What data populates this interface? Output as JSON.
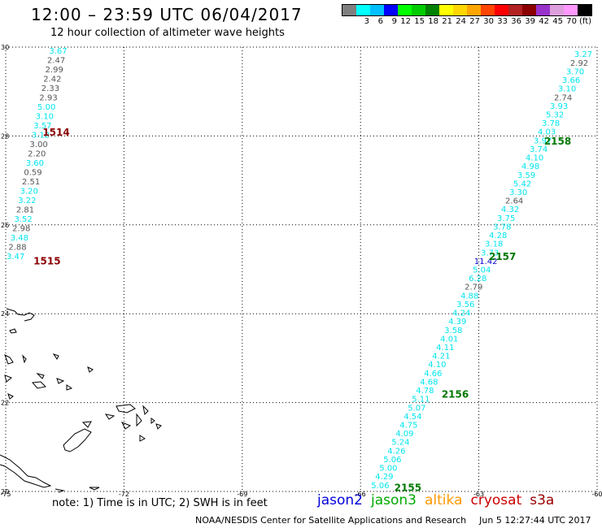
{
  "header": {
    "title": "12:00 – 23:59 UTC 06/04/2017",
    "subtitle": "12 hour collection of altimeter wave heights"
  },
  "legend": {
    "colors": [
      "#7f7f7f",
      "#00ffff",
      "#00bfff",
      "#0000ff",
      "#00ff00",
      "#00cc00",
      "#008000",
      "#ffff00",
      "#ffd700",
      "#ffa500",
      "#ff4500",
      "#ff0000",
      "#b22222",
      "#8b0000",
      "#9932cc",
      "#dda0dd",
      "#ff99ff",
      "#000000"
    ],
    "labels": [
      "3",
      "6",
      "9",
      "12",
      "15",
      "18",
      "21",
      "24",
      "27",
      "30",
      "33",
      "36",
      "39",
      "42",
      "45",
      "70"
    ],
    "unit": "(ft)"
  },
  "colors": {
    "grey": "#555555",
    "cyan": "#00e5ee",
    "blue": "#0000cc",
    "pass_label_red": "#8b0000",
    "pass_label_green": "#007700"
  },
  "chart_data": {
    "type": "scatter",
    "title": "12:00 – 23:59 UTC 06/04/2017",
    "subtitle": "12 hour collection of altimeter wave heights",
    "xlim": [
      -75,
      -60
    ],
    "ylim": [
      20,
      30
    ],
    "x_ticks": [
      -75,
      -72,
      -69,
      -66,
      -63,
      -60
    ],
    "y_ticks": [
      20,
      22,
      24,
      26,
      28,
      30
    ],
    "x_tick_labels": [
      "-75",
      "-72",
      "-69",
      "-66",
      "-63",
      "-60"
    ],
    "y_tick_labels": [
      "20",
      "22",
      "24",
      "26",
      "28",
      "30"
    ],
    "grid": true,
    "passes": [
      {
        "labels": [
          {
            "text": "1514",
            "lon": -73.72,
            "lat": 28.1,
            "color": "pass_label_red"
          },
          {
            "text": "1515",
            "lon": -73.95,
            "lat": 25.2,
            "color": "pass_label_red"
          }
        ],
        "track": {
          "lat_start": 29.93,
          "lon_start": -73.67,
          "lat_end": 25.3,
          "lon_end": -74.75
        },
        "points": [
          {
            "v": "3.67",
            "c": "cyan"
          },
          {
            "v": "2.47",
            "c": "grey"
          },
          {
            "v": "2.99",
            "c": "grey"
          },
          {
            "v": "2.42",
            "c": "grey"
          },
          {
            "v": "2.33",
            "c": "grey"
          },
          {
            "v": "2.93",
            "c": "grey"
          },
          {
            "v": "5.00",
            "c": "cyan"
          },
          {
            "v": "3.10",
            "c": "cyan"
          },
          {
            "v": "3.57",
            "c": "cyan"
          },
          {
            "v": "3.12",
            "c": "cyan"
          },
          {
            "v": "3.00",
            "c": "grey"
          },
          {
            "v": "2.20",
            "c": "grey"
          },
          {
            "v": "3.60",
            "c": "cyan"
          },
          {
            "v": "0.59",
            "c": "grey"
          },
          {
            "v": "2.51",
            "c": "grey"
          },
          {
            "v": "3.20",
            "c": "cyan"
          },
          {
            "v": "3.22",
            "c": "cyan"
          },
          {
            "v": "2.81",
            "c": "grey"
          },
          {
            "v": "3.52",
            "c": "cyan"
          },
          {
            "v": "2.98",
            "c": "grey"
          },
          {
            "v": "3.48",
            "c": "cyan"
          },
          {
            "v": "2.88",
            "c": "grey"
          },
          {
            "v": "3.47",
            "c": "cyan"
          }
        ]
      },
      {
        "labels": [
          {
            "text": "2158",
            "lon": -61.0,
            "lat": 27.9,
            "color": "pass_label_green"
          },
          {
            "text": "2157",
            "lon": -62.4,
            "lat": 25.3,
            "color": "pass_label_green"
          },
          {
            "text": "2156",
            "lon": -63.6,
            "lat": 22.2,
            "color": "pass_label_green"
          },
          {
            "text": "2155",
            "lon": -64.8,
            "lat": 20.1,
            "color": "pass_label_green"
          }
        ],
        "track": {
          "lat_start": 29.85,
          "lon_start": -60.35,
          "lat_end": 20.15,
          "lon_end": -65.5
        },
        "points": [
          {
            "v": "3.27",
            "c": "cyan"
          },
          {
            "v": "2.92",
            "c": "grey"
          },
          {
            "v": "3.70",
            "c": "cyan"
          },
          {
            "v": "3.66",
            "c": "cyan"
          },
          {
            "v": "3.10",
            "c": "cyan"
          },
          {
            "v": "2.74",
            "c": "grey"
          },
          {
            "v": "3.93",
            "c": "cyan"
          },
          {
            "v": "5.32",
            "c": "cyan"
          },
          {
            "v": "3.78",
            "c": "cyan"
          },
          {
            "v": "4.03",
            "c": "cyan"
          },
          {
            "v": "3.97",
            "c": "cyan"
          },
          {
            "v": "3.74",
            "c": "cyan"
          },
          {
            "v": "4.10",
            "c": "cyan"
          },
          {
            "v": "4.98",
            "c": "cyan"
          },
          {
            "v": "3.59",
            "c": "cyan"
          },
          {
            "v": "5.42",
            "c": "cyan"
          },
          {
            "v": "3.30",
            "c": "cyan"
          },
          {
            "v": "2.64",
            "c": "grey"
          },
          {
            "v": "4.32",
            "c": "cyan"
          },
          {
            "v": "3.75",
            "c": "cyan"
          },
          {
            "v": "3.78",
            "c": "cyan"
          },
          {
            "v": "4.28",
            "c": "cyan"
          },
          {
            "v": "3.18",
            "c": "cyan"
          },
          {
            "v": "3.73",
            "c": "cyan"
          },
          {
            "v": "11.42",
            "c": "blue"
          },
          {
            "v": "5.04",
            "c": "cyan"
          },
          {
            "v": "6.28",
            "c": "cyan"
          },
          {
            "v": "2.79",
            "c": "grey"
          },
          {
            "v": "4.88",
            "c": "cyan"
          },
          {
            "v": "3.56",
            "c": "cyan"
          },
          {
            "v": "4.24",
            "c": "cyan"
          },
          {
            "v": "4.39",
            "c": "cyan"
          },
          {
            "v": "3.58",
            "c": "cyan"
          },
          {
            "v": "4.01",
            "c": "cyan"
          },
          {
            "v": "4.11",
            "c": "cyan"
          },
          {
            "v": "4.21",
            "c": "cyan"
          },
          {
            "v": "4.10",
            "c": "cyan"
          },
          {
            "v": "4.66",
            "c": "cyan"
          },
          {
            "v": "4.68",
            "c": "cyan"
          },
          {
            "v": "4.78",
            "c": "cyan"
          },
          {
            "v": "5.11",
            "c": "cyan"
          },
          {
            "v": "5.07",
            "c": "cyan"
          },
          {
            "v": "4.54",
            "c": "cyan"
          },
          {
            "v": "4.75",
            "c": "cyan"
          },
          {
            "v": "4.09",
            "c": "cyan"
          },
          {
            "v": "5.24",
            "c": "cyan"
          },
          {
            "v": "4.26",
            "c": "cyan"
          },
          {
            "v": "5.06",
            "c": "cyan"
          },
          {
            "v": "5.00",
            "c": "cyan"
          },
          {
            "v": "4.29",
            "c": "cyan"
          },
          {
            "v": "5.06",
            "c": "cyan"
          }
        ]
      }
    ]
  },
  "footer": {
    "note": "note: 1) Time is in UTC; 2) SWH is in feet",
    "satellites": [
      {
        "name": "jason2",
        "color": "#0000dd"
      },
      {
        "name": "jason3",
        "color": "#00aa00"
      },
      {
        "name": "altika",
        "color": "#ff9900"
      },
      {
        "name": "cryosat",
        "color": "#cc0000"
      },
      {
        "name": "s3a",
        "color": "#990000"
      }
    ],
    "credit": "NOAA/NESDIS Center for Satellite Applications and Research",
    "timestamp": "Jun  5 12:27:44 UTC 2017"
  }
}
